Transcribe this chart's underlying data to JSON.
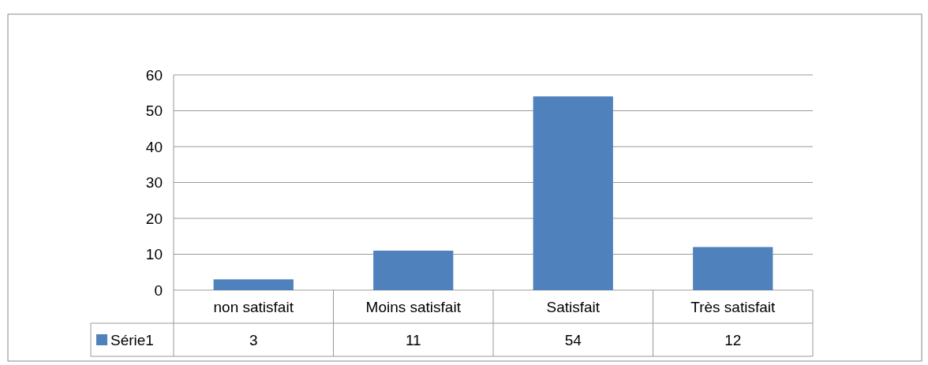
{
  "chart_data": {
    "type": "bar",
    "categories": [
      "non satisfait",
      "Moins satisfait",
      "Satisfait",
      "Très satisfait"
    ],
    "series": [
      {
        "name": "Série1",
        "color": "#4f81bd",
        "values": [
          3,
          11,
          54,
          12
        ]
      }
    ],
    "ylim": [
      0,
      60
    ],
    "yticks": [
      0,
      10,
      20,
      30,
      40,
      50,
      60
    ],
    "grid": "y",
    "data_labels": true,
    "legend": "bottom"
  }
}
